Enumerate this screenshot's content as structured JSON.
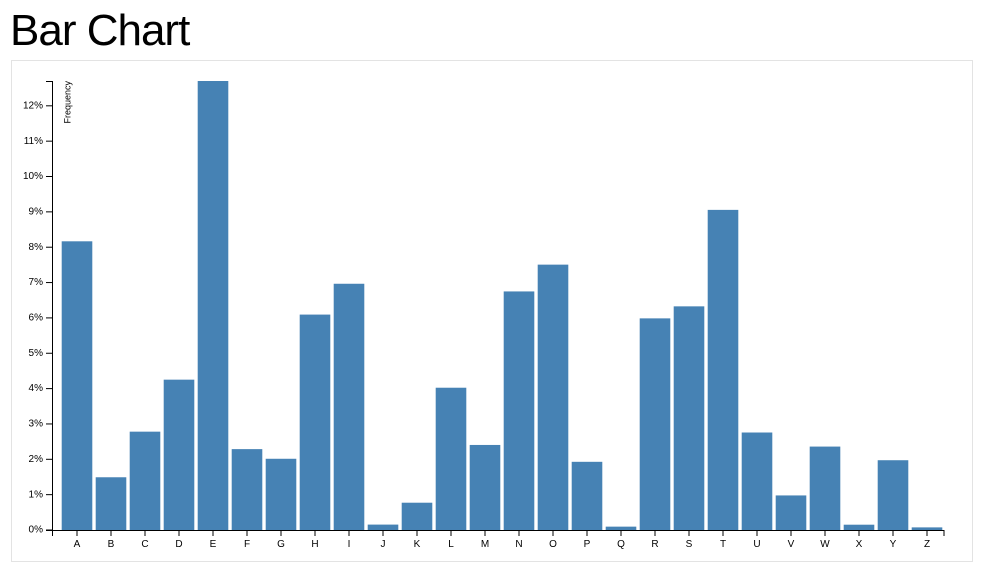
{
  "header": {
    "title": "Bar Chart"
  },
  "chart_data": {
    "type": "bar",
    "y_label": "Frequency",
    "categories": [
      "A",
      "B",
      "C",
      "D",
      "E",
      "F",
      "G",
      "H",
      "I",
      "J",
      "K",
      "L",
      "M",
      "N",
      "O",
      "P",
      "Q",
      "R",
      "S",
      "T",
      "U",
      "V",
      "W",
      "X",
      "Y",
      "Z"
    ],
    "values": [
      8.167,
      1.492,
      2.782,
      4.253,
      12.702,
      2.288,
      2.015,
      6.094,
      6.966,
      0.153,
      0.772,
      4.025,
      2.406,
      6.749,
      7.507,
      1.929,
      0.095,
      5.987,
      6.327,
      9.056,
      2.758,
      0.978,
      2.36,
      0.15,
      1.974,
      0.074
    ],
    "color": "#4682b4",
    "ylim": [
      0,
      12.702
    ],
    "yticks": [
      {
        "value": 0,
        "label": "0%"
      },
      {
        "value": 1,
        "label": "1%"
      },
      {
        "value": 2,
        "label": "2%"
      },
      {
        "value": 3,
        "label": "3%"
      },
      {
        "value": 4,
        "label": "4%"
      },
      {
        "value": 5,
        "label": "5%"
      },
      {
        "value": 6,
        "label": "6%"
      },
      {
        "value": 7,
        "label": "7%"
      },
      {
        "value": 8,
        "label": "8%"
      },
      {
        "value": 9,
        "label": "9%"
      },
      {
        "value": 10,
        "label": "10%"
      },
      {
        "value": 11,
        "label": "11%"
      },
      {
        "value": 12,
        "label": "12%"
      }
    ],
    "grid": false
  }
}
